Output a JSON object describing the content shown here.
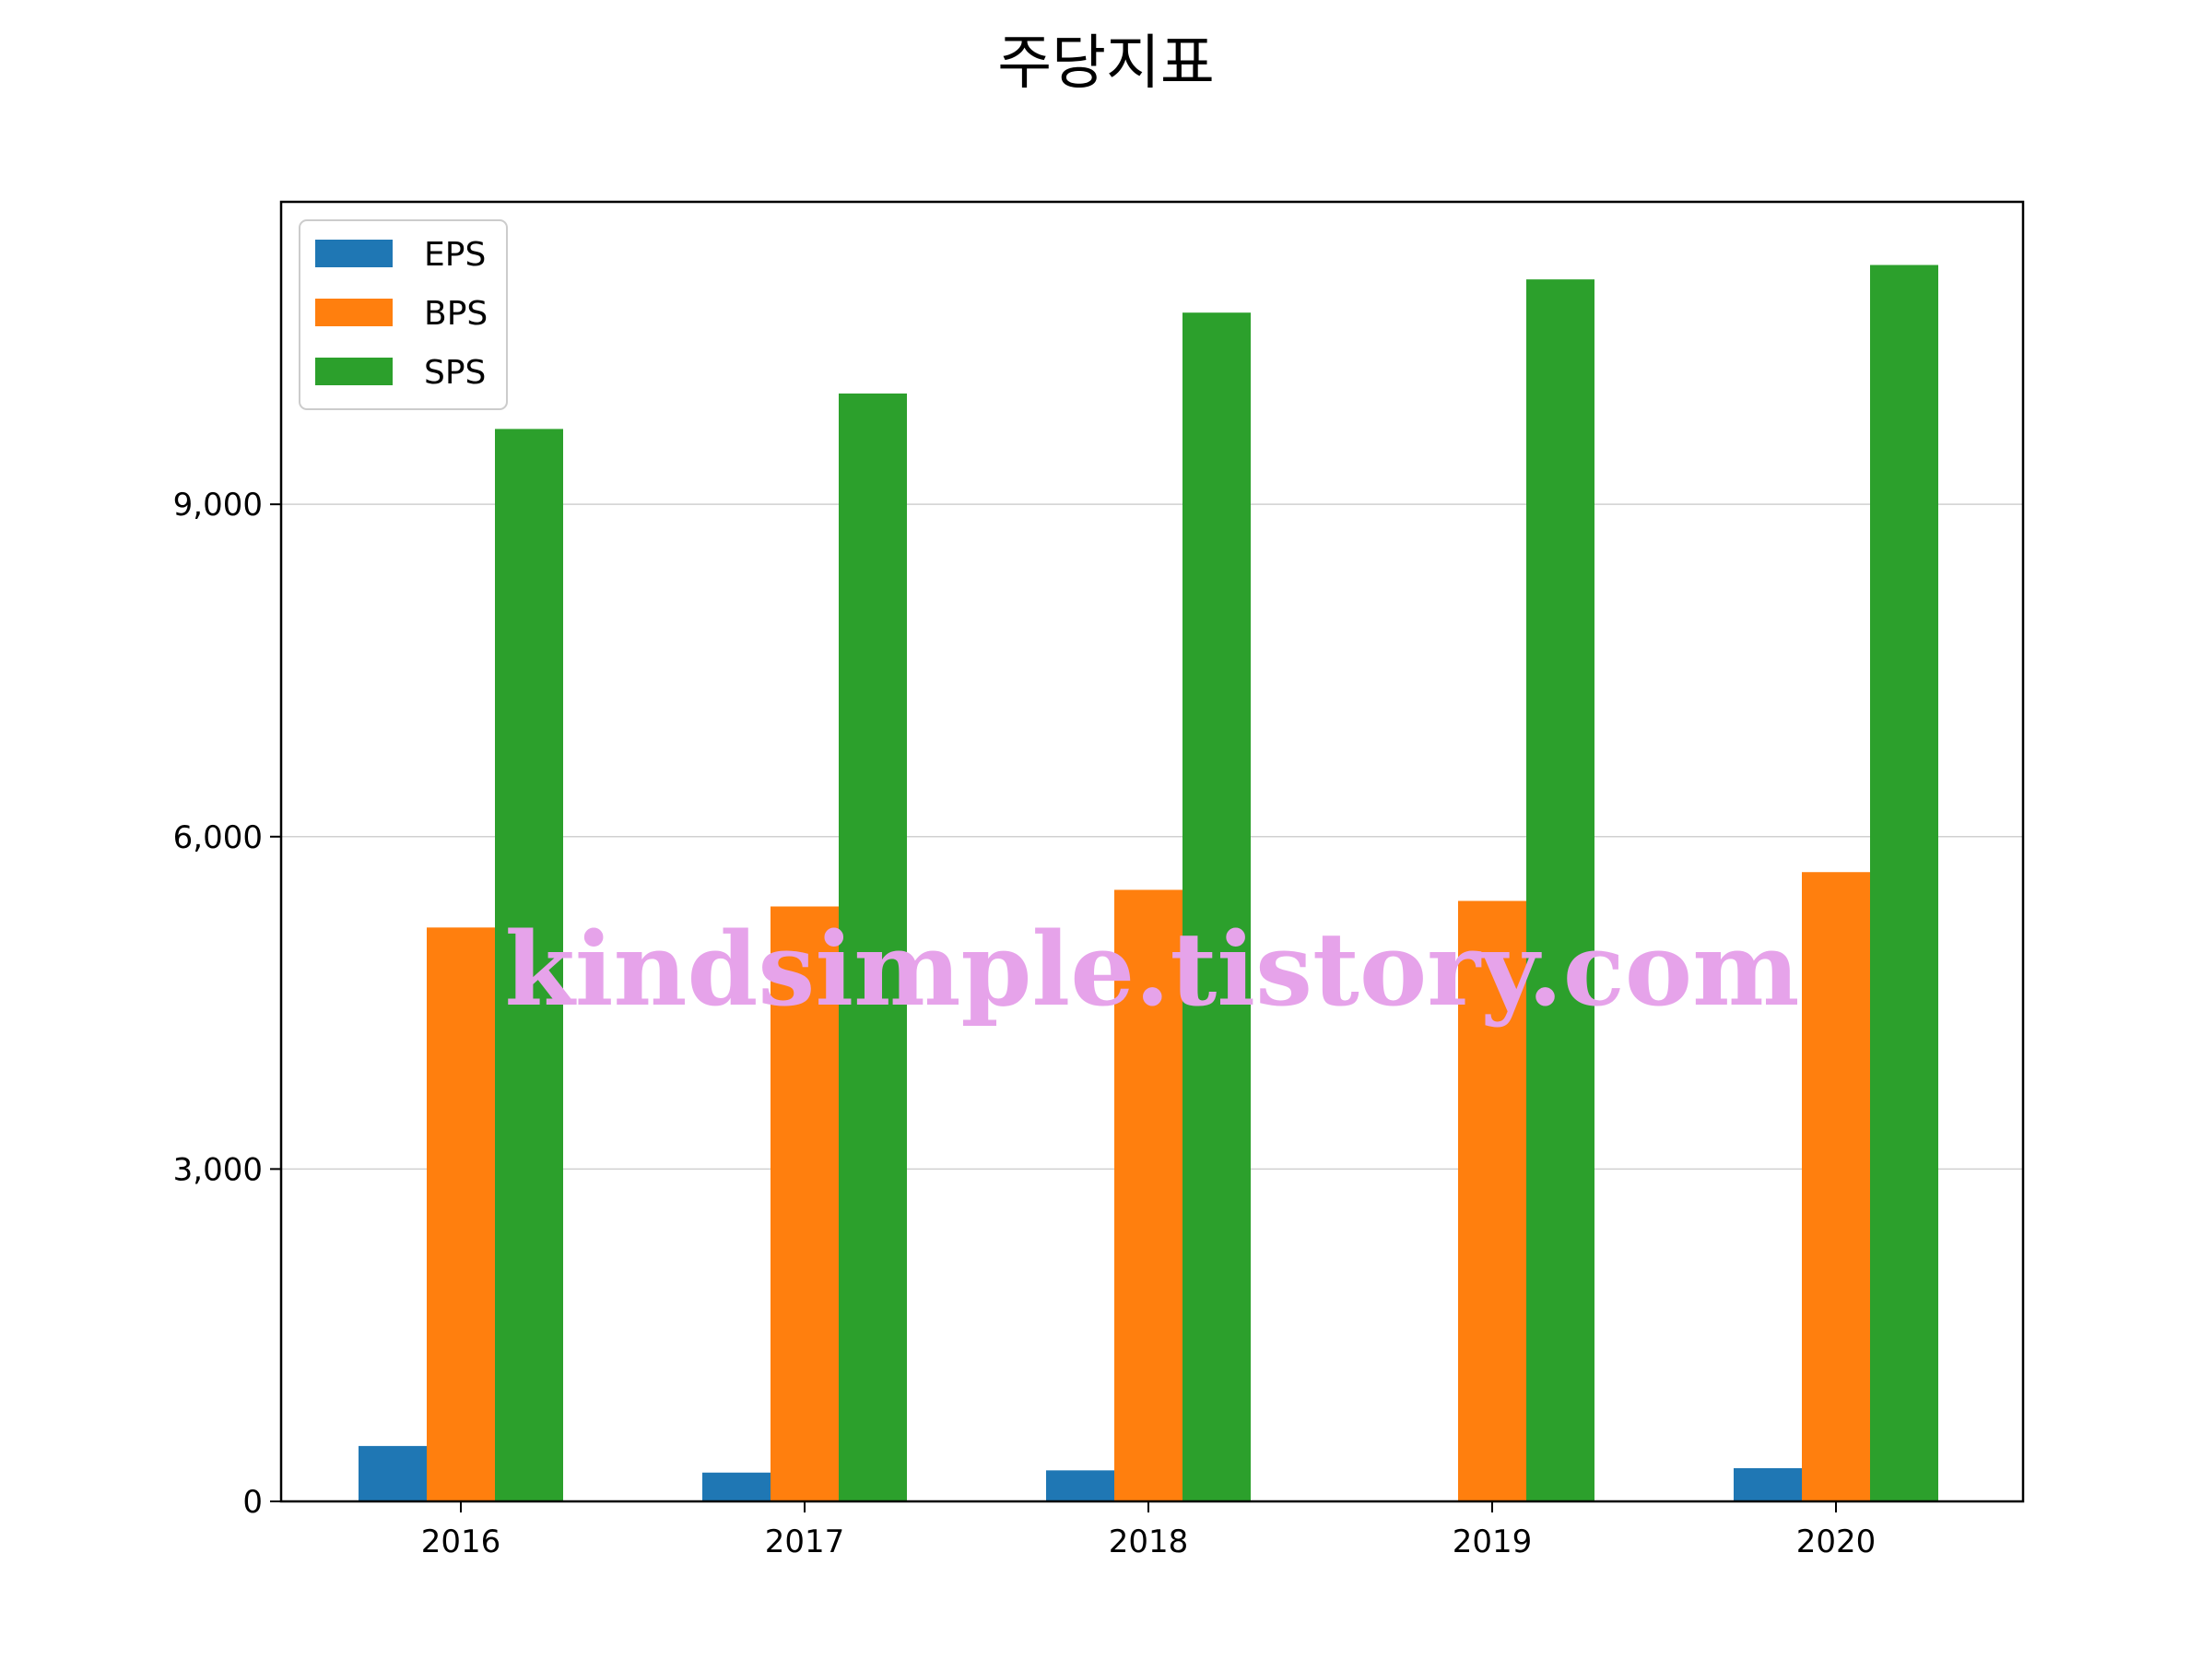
{
  "chart_data": {
    "type": "bar",
    "title": "주당지표",
    "xlabel": "",
    "ylabel": "",
    "categories": [
      "2016",
      "2017",
      "2018",
      "2019",
      "2020"
    ],
    "series": [
      {
        "name": "EPS",
        "color": "#1f77b4",
        "values": [
          500,
          260,
          280,
          0,
          300
        ]
      },
      {
        "name": "BPS",
        "color": "#ff7f0e",
        "values": [
          5180,
          5370,
          5520,
          5420,
          5680
        ]
      },
      {
        "name": "SPS",
        "color": "#2ca02c",
        "values": [
          9680,
          10000,
          10730,
          11030,
          11160
        ]
      }
    ],
    "ylim": [
      0,
      11730
    ],
    "yticks": [
      0,
      3000,
      6000,
      9000
    ],
    "ytick_labels": [
      "0",
      "3,000",
      "6,000",
      "9,000"
    ],
    "grid": "y",
    "legend_position": "top-left"
  },
  "watermark": "kindsimple.tistory.com"
}
